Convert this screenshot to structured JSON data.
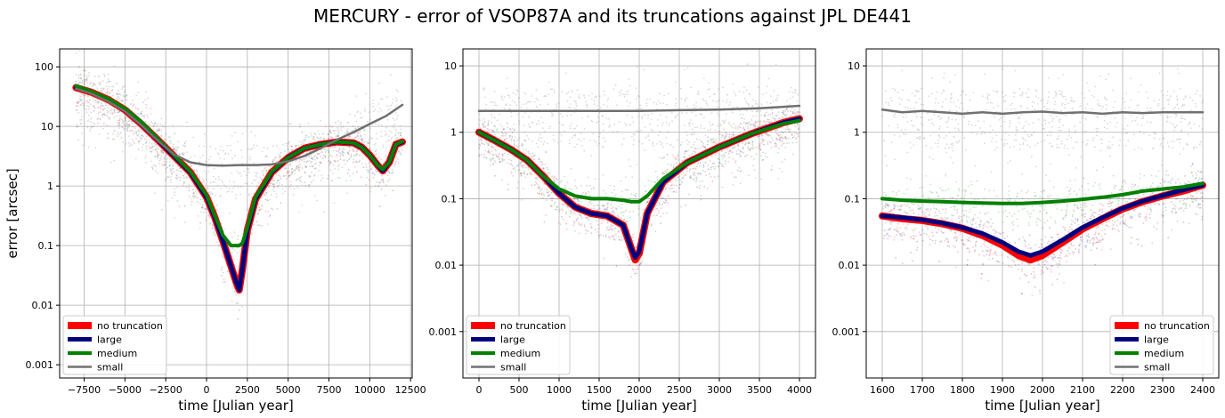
{
  "figure": {
    "title": "MERCURY - error of VSOP87A and its truncations against JPL DE441"
  },
  "colors": {
    "no_truncation": "#ff0000",
    "large": "#00007f",
    "medium": "#008000",
    "small": "#707070",
    "grid": "#b0b0b0"
  },
  "chart_data": [
    {
      "type": "line",
      "title": "",
      "xlabel": "time [Julian year]",
      "ylabel": "error [arcsec]",
      "yscale": "log",
      "xlim": [
        -9000,
        12600
      ],
      "ylim": [
        0.0006,
        200
      ],
      "xticks": [
        -7500,
        -5000,
        -2500,
        0,
        2500,
        5000,
        7500,
        10000,
        12500
      ],
      "xtick_labels": [
        "−7500",
        "−5000",
        "−2500",
        "0",
        "2500",
        "5000",
        "7500",
        "10000",
        "12500"
      ],
      "yticks": [
        0.001,
        0.01,
        0.1,
        1,
        10,
        100
      ],
      "ytick_labels": [
        "0.001",
        "0.01",
        "0.1",
        "1",
        "10",
        "100"
      ],
      "grid": true,
      "legend": "bottom-left",
      "series": [
        {
          "name": "no truncation",
          "x": [
            -8000,
            -7000,
            -6000,
            -5000,
            -4000,
            -3000,
            -2000,
            -1000,
            0,
            500,
            1000,
            1500,
            1800,
            2000,
            2200,
            2500,
            3000,
            4000,
            5000,
            6000,
            7000,
            8000,
            9000,
            9500,
            10000,
            10500,
            10800,
            11200,
            11600,
            12000
          ],
          "y": [
            45,
            37,
            28,
            19,
            11,
            6,
            3.2,
            1.7,
            0.65,
            0.3,
            0.12,
            0.045,
            0.025,
            0.018,
            0.04,
            0.18,
            0.6,
            1.7,
            3.0,
            4.3,
            5.0,
            5.5,
            5.3,
            4.5,
            3.3,
            2.2,
            1.8,
            2.5,
            5,
            5.5
          ]
        },
        {
          "name": "large",
          "x": [
            -8000,
            -7000,
            -6000,
            -5000,
            -4000,
            -3000,
            -2000,
            -1000,
            0,
            500,
            1000,
            1500,
            1800,
            2000,
            2200,
            2500,
            3000,
            4000,
            5000,
            6000,
            7000,
            8000,
            9000,
            9500,
            10000,
            10500,
            10800,
            11200,
            11600,
            12000
          ],
          "y": [
            45,
            37,
            28,
            19,
            11,
            6,
            3.2,
            1.7,
            0.65,
            0.3,
            0.12,
            0.045,
            0.025,
            0.018,
            0.04,
            0.18,
            0.6,
            1.7,
            3.0,
            4.3,
            5.0,
            5.5,
            5.3,
            4.5,
            3.3,
            2.2,
            1.8,
            2.5,
            5,
            5.5
          ]
        },
        {
          "name": "medium",
          "x": [
            -8000,
            -7000,
            -6000,
            -5000,
            -4000,
            -3000,
            -2000,
            -1000,
            0,
            500,
            1000,
            1500,
            1800,
            2000,
            2200,
            2500,
            3000,
            4000,
            5000,
            6000,
            7000,
            8000,
            9000,
            9500,
            10000,
            10500,
            10800,
            11200,
            11600,
            12000
          ],
          "y": [
            48,
            38,
            29,
            20,
            12,
            6.3,
            3.3,
            1.75,
            0.7,
            0.32,
            0.15,
            0.1,
            0.1,
            0.1,
            0.11,
            0.2,
            0.65,
            1.75,
            3.0,
            4.3,
            5.0,
            5.5,
            5.3,
            4.5,
            3.3,
            2.2,
            1.9,
            2.5,
            5,
            5.6
          ]
        },
        {
          "name": "small",
          "x": [
            -8000,
            -7000,
            -6000,
            -5000,
            -4000,
            -3000,
            -2000,
            -1000,
            0,
            1000,
            2000,
            3000,
            4000,
            5000,
            6000,
            7000,
            8000,
            9000,
            10000,
            11000,
            12000
          ],
          "y": [
            43,
            35,
            26,
            18,
            10.5,
            5.8,
            3.4,
            2.5,
            2.25,
            2.2,
            2.25,
            2.25,
            2.3,
            2.6,
            3.2,
            4.3,
            6.0,
            8.0,
            11,
            15,
            23
          ]
        }
      ]
    },
    {
      "type": "line",
      "title": "",
      "xlabel": "time [Julian year]",
      "ylabel": "",
      "yscale": "log",
      "xlim": [
        -200,
        4200
      ],
      "ylim": [
        0.0002,
        18
      ],
      "xticks": [
        0,
        500,
        1000,
        1500,
        2000,
        2500,
        3000,
        3500,
        4000
      ],
      "xtick_labels": [
        "0",
        "500",
        "1000",
        "1500",
        "2000",
        "2500",
        "3000",
        "3500",
        "4000"
      ],
      "yticks": [
        0.001,
        0.01,
        0.1,
        1,
        10
      ],
      "ytick_labels": [
        "0.001",
        "0.01",
        "0.1",
        "1",
        "10"
      ],
      "grid": true,
      "legend": "bottom-left",
      "series": [
        {
          "name": "no truncation",
          "x": [
            0,
            200,
            400,
            600,
            800,
            1000,
            1200,
            1400,
            1600,
            1800,
            1900,
            1950,
            2000,
            2100,
            2300,
            2600,
            3000,
            3400,
            3800,
            4000
          ],
          "y": [
            1.0,
            0.75,
            0.55,
            0.38,
            0.22,
            0.12,
            0.075,
            0.06,
            0.055,
            0.04,
            0.018,
            0.012,
            0.015,
            0.06,
            0.18,
            0.35,
            0.6,
            0.95,
            1.4,
            1.6
          ]
        },
        {
          "name": "large",
          "x": [
            0,
            200,
            400,
            600,
            800,
            1000,
            1200,
            1400,
            1600,
            1800,
            1900,
            1950,
            2000,
            2100,
            2300,
            2600,
            3000,
            3400,
            3800,
            4000
          ],
          "y": [
            1.0,
            0.75,
            0.55,
            0.38,
            0.22,
            0.12,
            0.075,
            0.06,
            0.055,
            0.04,
            0.018,
            0.013,
            0.016,
            0.06,
            0.18,
            0.35,
            0.6,
            0.95,
            1.4,
            1.6
          ]
        },
        {
          "name": "medium",
          "x": [
            0,
            200,
            400,
            600,
            800,
            1000,
            1200,
            1400,
            1600,
            1800,
            1900,
            1950,
            2000,
            2100,
            2300,
            2600,
            3000,
            3400,
            3800,
            4000
          ],
          "y": [
            1.0,
            0.75,
            0.55,
            0.38,
            0.22,
            0.14,
            0.11,
            0.1,
            0.1,
            0.095,
            0.09,
            0.09,
            0.09,
            0.11,
            0.2,
            0.35,
            0.6,
            0.95,
            1.35,
            1.5
          ]
        },
        {
          "name": "small",
          "x": [
            0,
            500,
            1000,
            1500,
            2000,
            2500,
            3000,
            3500,
            4000
          ],
          "y": [
            2.1,
            2.1,
            2.1,
            2.1,
            2.1,
            2.15,
            2.2,
            2.3,
            2.5
          ]
        }
      ]
    },
    {
      "type": "line",
      "title": "",
      "xlabel": "time [Julian year]",
      "ylabel": "",
      "yscale": "log",
      "xlim": [
        1560,
        2440
      ],
      "ylim": [
        0.0002,
        18
      ],
      "xticks": [
        1600,
        1700,
        1800,
        1900,
        2000,
        2100,
        2200,
        2300,
        2400
      ],
      "xtick_labels": [
        "1600",
        "1700",
        "1800",
        "1900",
        "2000",
        "2100",
        "2200",
        "2300",
        "2400"
      ],
      "yticks": [
        0.001,
        0.01,
        0.1,
        1,
        10
      ],
      "ytick_labels": [
        "0.001",
        "0.01",
        "0.1",
        "1",
        "10"
      ],
      "grid": true,
      "legend": "bottom-right",
      "series": [
        {
          "name": "no truncation",
          "x": [
            1600,
            1650,
            1700,
            1750,
            1800,
            1850,
            1900,
            1940,
            1970,
            2000,
            2050,
            2100,
            2150,
            2200,
            2250,
            2300,
            2350,
            2400
          ],
          "y": [
            0.055,
            0.05,
            0.047,
            0.042,
            0.036,
            0.028,
            0.02,
            0.014,
            0.012,
            0.014,
            0.022,
            0.035,
            0.05,
            0.07,
            0.09,
            0.11,
            0.13,
            0.16
          ]
        },
        {
          "name": "large",
          "x": [
            1600,
            1650,
            1700,
            1750,
            1800,
            1850,
            1900,
            1940,
            1970,
            2000,
            2050,
            2100,
            2150,
            2200,
            2250,
            2300,
            2350,
            2400
          ],
          "y": [
            0.055,
            0.052,
            0.048,
            0.043,
            0.037,
            0.03,
            0.022,
            0.016,
            0.014,
            0.016,
            0.024,
            0.037,
            0.052,
            0.072,
            0.092,
            0.112,
            0.135,
            0.16
          ]
        },
        {
          "name": "medium",
          "x": [
            1600,
            1650,
            1700,
            1750,
            1800,
            1850,
            1900,
            1950,
            2000,
            2050,
            2100,
            2150,
            2200,
            2250,
            2300,
            2350,
            2400
          ],
          "y": [
            0.1,
            0.095,
            0.092,
            0.09,
            0.088,
            0.086,
            0.085,
            0.085,
            0.088,
            0.092,
            0.098,
            0.105,
            0.115,
            0.13,
            0.14,
            0.15,
            0.17
          ]
        },
        {
          "name": "small",
          "x": [
            1600,
            1650,
            1700,
            1750,
            1800,
            1850,
            1900,
            1950,
            2000,
            2050,
            2100,
            2150,
            2200,
            2250,
            2300,
            2350,
            2400
          ],
          "y": [
            2.2,
            2.0,
            2.1,
            2.0,
            1.9,
            2.0,
            1.9,
            2.0,
            2.05,
            1.95,
            2.0,
            1.9,
            2.0,
            1.95,
            2.0,
            2.0,
            2.0
          ]
        }
      ]
    }
  ]
}
